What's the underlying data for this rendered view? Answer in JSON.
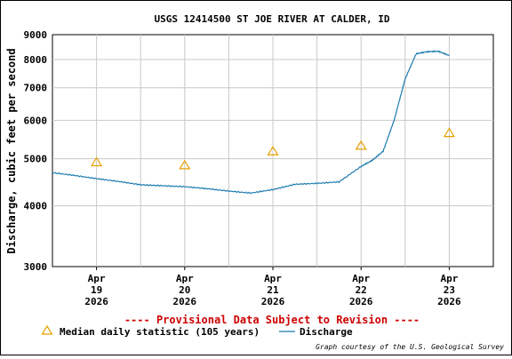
{
  "chart_data": {
    "type": "line",
    "title": "USGS 12414500 ST JOE RIVER AT CALDER, ID",
    "ylabel": "Discharge, cubic feet per second",
    "xlabel": "",
    "y_scale": "log",
    "ylim": [
      3000,
      9000
    ],
    "y_ticks": [
      {
        "value": 3000,
        "label": "3000"
      },
      {
        "value": 4000,
        "label": "4000"
      },
      {
        "value": 5000,
        "label": "5000"
      },
      {
        "value": 6000,
        "label": "6000"
      },
      {
        "value": 7000,
        "label": "7000"
      },
      {
        "value": 8000,
        "label": "8000"
      },
      {
        "value": 9000,
        "label": "9000"
      }
    ],
    "xlim": [
      "2026-04-18T12:00",
      "2026-04-23T12:00"
    ],
    "x_ticks": [
      {
        "x": "2026-04-19T00:00",
        "month": "Apr",
        "day": "19",
        "year": "2026"
      },
      {
        "x": "2026-04-20T00:00",
        "month": "Apr",
        "day": "20",
        "year": "2026"
      },
      {
        "x": "2026-04-21T00:00",
        "month": "Apr",
        "day": "21",
        "year": "2026"
      },
      {
        "x": "2026-04-22T00:00",
        "month": "Apr",
        "day": "22",
        "year": "2026"
      },
      {
        "x": "2026-04-23T00:00",
        "month": "Apr",
        "day": "23",
        "year": "2026"
      }
    ],
    "grid": true,
    "series": [
      {
        "name": "Discharge",
        "color": "#1a7bb0",
        "points": [
          [
            "2026-04-18T12:00",
            4680
          ],
          [
            "2026-04-18T18:00",
            4620
          ],
          [
            "2026-04-19T00:00",
            4550
          ],
          [
            "2026-04-19T06:00",
            4490
          ],
          [
            "2026-04-19T12:00",
            4420
          ],
          [
            "2026-04-19T18:00",
            4400
          ],
          [
            "2026-04-20T00:00",
            4380
          ],
          [
            "2026-04-20T06:00",
            4340
          ],
          [
            "2026-04-20T12:00",
            4290
          ],
          [
            "2026-04-20T18:00",
            4250
          ],
          [
            "2026-04-21T00:00",
            4320
          ],
          [
            "2026-04-21T06:00",
            4430
          ],
          [
            "2026-04-21T12:00",
            4450
          ],
          [
            "2026-04-21T18:00",
            4480
          ],
          [
            "2026-04-22T00:00",
            4820
          ],
          [
            "2026-04-22T03:00",
            4960
          ],
          [
            "2026-04-22T06:00",
            5180
          ],
          [
            "2026-04-22T09:00",
            6000
          ],
          [
            "2026-04-22T12:00",
            7300
          ],
          [
            "2026-04-22T15:00",
            8220
          ],
          [
            "2026-04-22T18:00",
            8300
          ],
          [
            "2026-04-22T21:00",
            8320
          ],
          [
            "2026-04-23T00:00",
            8150
          ]
        ]
      },
      {
        "name": "Median daily statistic (105 years)",
        "color": "#e6a000",
        "marker": "triangle",
        "points": [
          [
            "2026-04-19T00:00",
            4920
          ],
          [
            "2026-04-20T00:00",
            4850
          ],
          [
            "2026-04-21T00:00",
            5180
          ],
          [
            "2026-04-22T00:00",
            5320
          ],
          [
            "2026-04-23T00:00",
            5650
          ]
        ]
      }
    ],
    "legend": "bottom"
  },
  "annotations": {
    "provisional": "---- Provisional Data Subject to Revision ----",
    "credit": "Graph courtesy of the U.S. Geological Survey"
  }
}
